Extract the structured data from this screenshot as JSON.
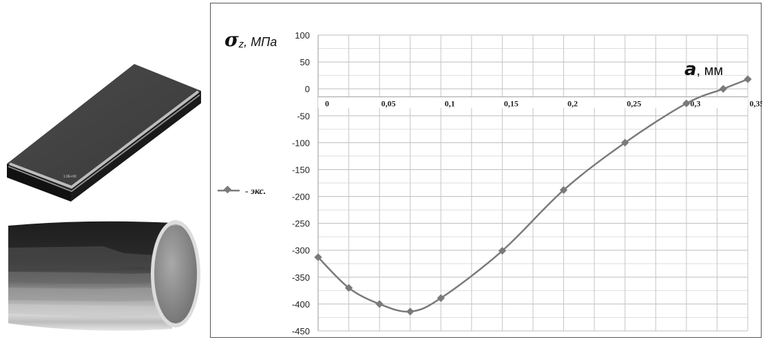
{
  "chart_data": {
    "type": "line",
    "ylabel_symbol": "σ",
    "ylabel_sub": "z",
    "ylabel_unit": ", МПа",
    "xlabel_symbol": "a",
    "xlabel_unit": ", мм",
    "x_ticks": [
      "0",
      "0,05",
      "0,1",
      "0,15",
      "0,2",
      "0,25",
      "0,3",
      "0,35"
    ],
    "x_tick_values": [
      0,
      0.05,
      0.1,
      0.15,
      0.2,
      0.25,
      0.3,
      0.35
    ],
    "y_ticks": [
      "100",
      "50",
      "0",
      "-50",
      "-100",
      "-150",
      "-200",
      "-250",
      "-300",
      "-350",
      "-400",
      "-450"
    ],
    "xlim": [
      0,
      0.35
    ],
    "ylim": [
      -450,
      100
    ],
    "grid": true,
    "legend_placement": "left",
    "series": [
      {
        "name": "- экс.",
        "color": "#7a7a7a",
        "x": [
          0,
          0.025,
          0.05,
          0.075,
          0.1,
          0.15,
          0.2,
          0.25,
          0.3,
          0.33,
          0.35
        ],
        "values": [
          -313,
          -370,
          -400,
          -414,
          -389,
          -301,
          -188,
          -100,
          -27,
          0,
          18
        ]
      }
    ]
  },
  "figures": {
    "plate_icon": "plate-3d-model",
    "cylinder_icon": "cylinder-3d-model"
  }
}
